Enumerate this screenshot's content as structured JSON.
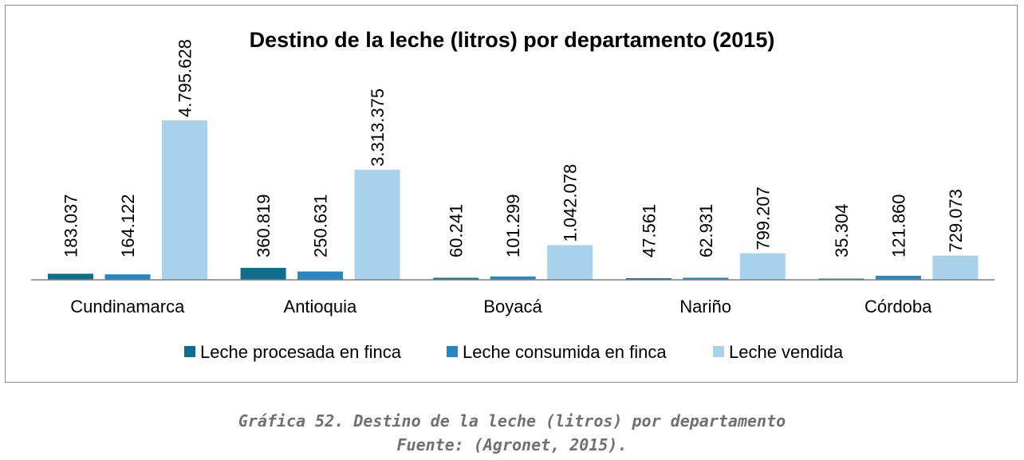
{
  "chart_data": {
    "type": "bar",
    "title": "Destino de la leche (litros) por departamento (2015)",
    "categories": [
      "Cundinamarca",
      "Antioquia",
      "Boyacá",
      "Nariño",
      "Córdoba"
    ],
    "series": [
      {
        "name": "Leche procesada en finca",
        "color": "#0e6e8c",
        "values": [
          183037,
          360819,
          60241,
          47561,
          35304
        ],
        "labels": [
          "183.037",
          "360.819",
          "60.241",
          "47.561",
          "35.304"
        ]
      },
      {
        "name": "Leche consumida en finca",
        "color": "#2a86c2",
        "values": [
          164122,
          250631,
          101299,
          62931,
          121860
        ],
        "labels": [
          "164.122",
          "250.631",
          "101.299",
          "62.931",
          "121.860"
        ]
      },
      {
        "name": "Leche vendida",
        "color": "#a8d2ec",
        "values": [
          4795628,
          3313375,
          1042078,
          799207,
          729073
        ],
        "labels": [
          "4.795.628",
          "3.313.375",
          "1.042.078",
          "799.207",
          "729.073"
        ]
      }
    ],
    "legend_position": "bottom",
    "grid": false
  },
  "caption": {
    "line1": "Gráfica 52. Destino de la leche (litros) por departamento",
    "line2": "Fuente: (Agronet, 2015)."
  }
}
